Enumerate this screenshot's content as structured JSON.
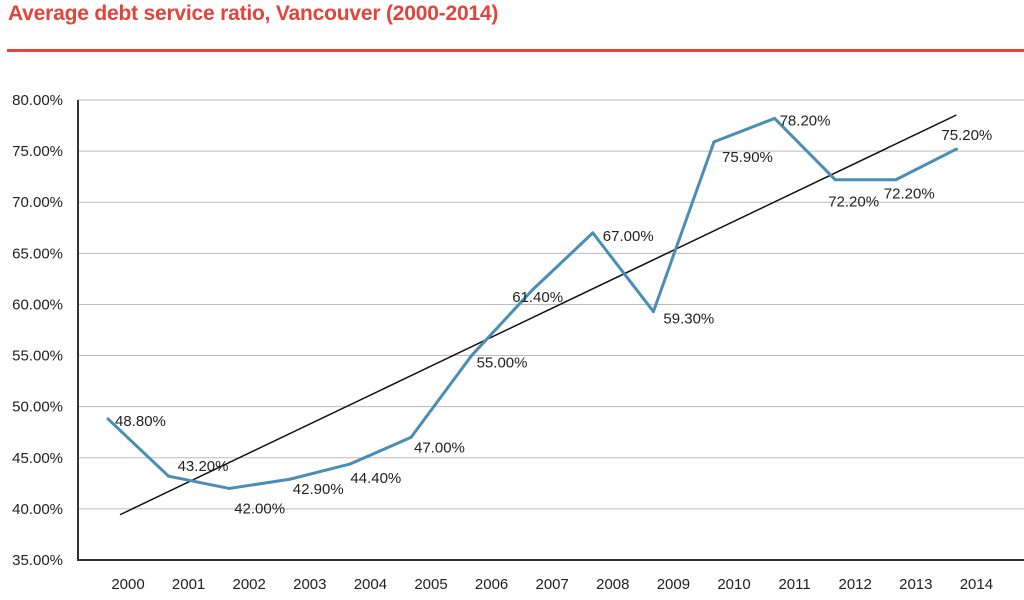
{
  "title": "Average debt service ratio, Vancouver (2000-2014)",
  "colors": {
    "title": "#e2433a",
    "series": "#4a8db5",
    "trend": "#111111",
    "grid": "#bbbbbb"
  },
  "chart_data": {
    "type": "line",
    "title": "Average debt service ratio, Vancouver (2000-2014)",
    "xlabel": "",
    "ylabel": "",
    "categories": [
      "2000",
      "2001",
      "2002",
      "2003",
      "2004",
      "2005",
      "2006",
      "2007",
      "2008",
      "2009",
      "2010",
      "2011",
      "2012",
      "2013",
      "2014"
    ],
    "series": [
      {
        "values": [
          48.8,
          43.2,
          42.0,
          42.9,
          44.4,
          47.0,
          55.0,
          61.4,
          67.0,
          59.3,
          75.9,
          78.2,
          72.2,
          72.2,
          75.2
        ],
        "data_labels": [
          "48.80%",
          "43.20%",
          "42.00%",
          "42.90%",
          "44.40%",
          "47.00%",
          "55.00%",
          "61.40%",
          "67.00%",
          "59.30%",
          "75.90%",
          "78.20%",
          "72.20%",
          "72.20%",
          "75.20%"
        ]
      }
    ],
    "trendline": "linear",
    "ylim": [
      35,
      80
    ],
    "yticks": [
      "35.00%",
      "40.00%",
      "45.00%",
      "50.00%",
      "55.00%",
      "60.00%",
      "65.00%",
      "70.00%",
      "75.00%",
      "80.00%"
    ],
    "grid": true,
    "legend": "none"
  }
}
